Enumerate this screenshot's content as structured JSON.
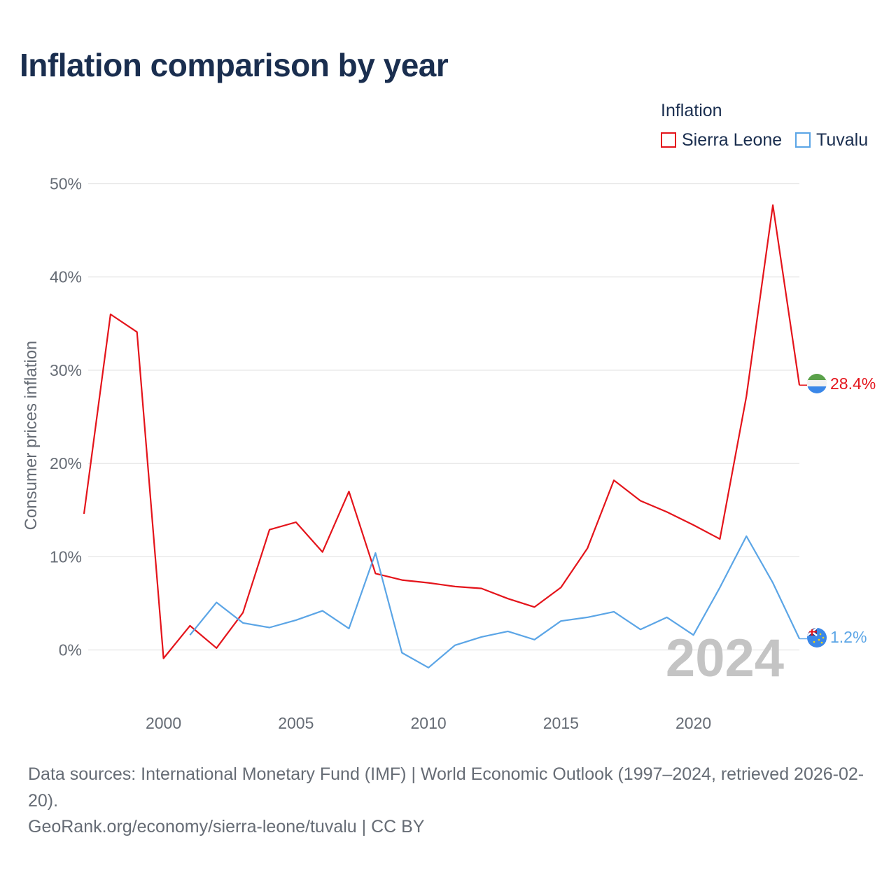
{
  "title": "Inflation comparison by year",
  "legend": {
    "title": "Inflation",
    "items": [
      {
        "label": "Sierra Leone",
        "color": "#e4141b"
      },
      {
        "label": "Tuvalu",
        "color": "#5ba5e6"
      }
    ]
  },
  "chart_data": {
    "type": "line",
    "ylabel": "Consumer prices inflation",
    "xlabel": "",
    "xlim": [
      1997,
      2024
    ],
    "ylim": [
      -6,
      50
    ],
    "x_ticks": [
      2000,
      2005,
      2010,
      2015,
      2020
    ],
    "y_ticks": [
      0,
      10,
      20,
      30,
      40,
      50
    ],
    "y_tick_labels": [
      "0%",
      "10%",
      "20%",
      "30%",
      "40%",
      "50%"
    ],
    "year_watermark": "2024",
    "series": [
      {
        "name": "Sierra Leone",
        "color": "#e4141b",
        "end_label": "28.4%",
        "x": [
          1997,
          1998,
          1999,
          2000,
          2001,
          2002,
          2003,
          2004,
          2005,
          2006,
          2007,
          2008,
          2009,
          2010,
          2011,
          2012,
          2013,
          2014,
          2015,
          2016,
          2017,
          2018,
          2019,
          2020,
          2021,
          2022,
          2023,
          2024
        ],
        "values": [
          14.6,
          36.0,
          34.1,
          -0.9,
          2.6,
          0.2,
          4.0,
          12.9,
          13.7,
          10.5,
          17.0,
          8.2,
          7.5,
          7.2,
          6.8,
          6.6,
          5.5,
          4.6,
          6.7,
          10.9,
          18.2,
          16.0,
          14.8,
          13.4,
          11.9,
          27.2,
          47.7,
          28.4
        ]
      },
      {
        "name": "Tuvalu",
        "color": "#5ba5e6",
        "end_label": "1.2%",
        "x": [
          2001,
          2002,
          2003,
          2004,
          2005,
          2006,
          2007,
          2008,
          2009,
          2010,
          2011,
          2012,
          2013,
          2014,
          2015,
          2016,
          2017,
          2018,
          2019,
          2020,
          2021,
          2022,
          2023,
          2024
        ],
        "values": [
          1.6,
          5.1,
          2.9,
          2.4,
          3.2,
          4.2,
          2.3,
          10.4,
          -0.3,
          -1.9,
          0.5,
          1.4,
          2.0,
          1.1,
          3.1,
          3.5,
          4.1,
          2.2,
          3.5,
          1.6,
          6.7,
          12.2,
          7.2,
          1.2
        ]
      }
    ]
  },
  "icons": {
    "sierra_leone_flag": "sierra-leone-flag-icon",
    "tuvalu_flag": "tuvalu-flag-icon"
  },
  "footer": {
    "sources": "Data sources: International Monetary Fund (IMF) | World Economic Outlook (1997–2024, retrieved 2026-02-20).",
    "credit": "GeoRank.org/economy/sierra-leone/tuvalu | CC BY"
  }
}
